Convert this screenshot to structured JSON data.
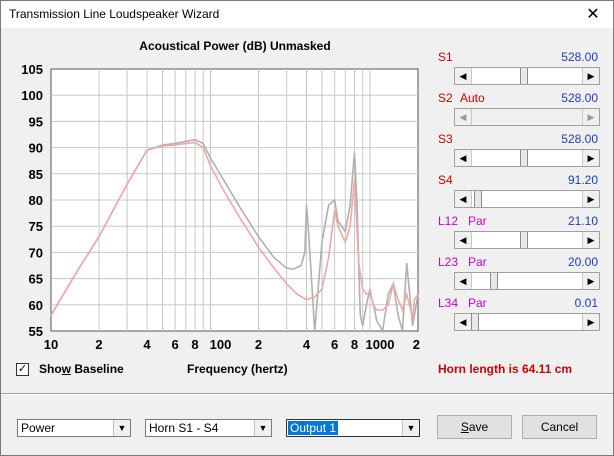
{
  "window": {
    "title": "Transmission Line Loudspeaker Wizard",
    "close_glyph": "✕"
  },
  "chart_data": {
    "type": "line",
    "title": "Acoustical Power (dB)   Unmasked",
    "xlabel": "Frequency (hertz)",
    "ylabel": "",
    "xscale": "log",
    "xlim": [
      10,
      2000
    ],
    "ylim": [
      55,
      105
    ],
    "yticks": [
      "105",
      "100",
      "95",
      "90",
      "85",
      "80",
      "75",
      "70",
      "65",
      "60",
      "55"
    ],
    "xticks": [
      "10",
      "2",
      "4",
      "6",
      "8",
      "100",
      "2",
      "4",
      "6",
      "8",
      "1000",
      "2"
    ],
    "series": [
      {
        "color": "#b0b0b0",
        "x": [
          10,
          15,
          20,
          30,
          40,
          50,
          60,
          70,
          80,
          90,
          100,
          120,
          150,
          200,
          250,
          300,
          330,
          370,
          390,
          400,
          410,
          430,
          450,
          500,
          550,
          600,
          630,
          700,
          750,
          800,
          830,
          850,
          870,
          900,
          950,
          1000,
          1030,
          1070,
          1100,
          1200,
          1300,
          1400,
          1500,
          1600,
          1700,
          1800,
          1850,
          1900,
          2000
        ],
        "y": [
          58,
          67,
          73,
          83,
          89.5,
          90.5,
          90.8,
          91.2,
          91.5,
          90.8,
          88,
          84,
          79,
          73,
          69,
          67,
          66.8,
          67.5,
          70,
          79,
          75,
          65,
          55,
          72,
          79,
          80,
          76,
          74,
          79,
          89,
          79,
          68,
          58,
          56,
          60,
          63,
          61,
          59,
          57,
          55,
          62,
          64,
          58,
          55,
          68,
          60,
          56,
          58,
          62
        ]
      },
      {
        "color": "#f0a8a8",
        "x": [
          10,
          15,
          20,
          30,
          40,
          50,
          60,
          70,
          80,
          90,
          100,
          120,
          150,
          200,
          250,
          300,
          350,
          400,
          450,
          500,
          550,
          600,
          630,
          700,
          750,
          800,
          830,
          850,
          900,
          950,
          1000,
          1050,
          1100,
          1200,
          1300,
          1400,
          1500,
          1600,
          1700,
          1800,
          1850,
          1900,
          2000
        ],
        "y": [
          58,
          67,
          73,
          83,
          89.5,
          90.3,
          90.5,
          90.8,
          91,
          90,
          86.5,
          82,
          77,
          71,
          67,
          64,
          62,
          61,
          61.5,
          63,
          69,
          78,
          75,
          72,
          75,
          84,
          74,
          68,
          63,
          62,
          62.5,
          60,
          59,
          59,
          60,
          64,
          61,
          59,
          62,
          59,
          57,
          61,
          62
        ]
      }
    ]
  },
  "sliders": [
    {
      "label": "S1",
      "sub": "",
      "value": "528.00",
      "pos": 0.47,
      "disabled": false,
      "pink": false
    },
    {
      "label": "S2",
      "sub": "Auto",
      "value": "528.00",
      "pos": null,
      "disabled": true,
      "pink": false
    },
    {
      "label": "S3",
      "sub": "",
      "value": "528.00",
      "pos": 0.47,
      "disabled": false,
      "pink": false
    },
    {
      "label": "S4",
      "sub": "",
      "value": "91.20",
      "pos": 0.03,
      "disabled": false,
      "pink": false
    },
    {
      "label": "L12",
      "sub": "Par",
      "value": "21.10",
      "pos": 0.47,
      "disabled": false,
      "pink": true
    },
    {
      "label": "L23",
      "sub": "Par",
      "value": "20.00",
      "pos": 0.18,
      "disabled": false,
      "pink": true
    },
    {
      "label": "L34",
      "sub": "Par",
      "value": "0.01",
      "pos": 0.0,
      "disabled": false,
      "pink": true
    }
  ],
  "checkbox": {
    "label_pre": "Sho",
    "label_u": "w",
    "label_post": " Baseline",
    "checked_glyph": "✓"
  },
  "horn_length": "Horn length is 64.11 cm",
  "dropdowns": {
    "mode": "Power",
    "horn": "Horn S1 - S4",
    "output": "Output 1",
    "arrow": "▼"
  },
  "buttons": {
    "save_u": "S",
    "save_rest": "ave",
    "cancel": "Cancel"
  }
}
